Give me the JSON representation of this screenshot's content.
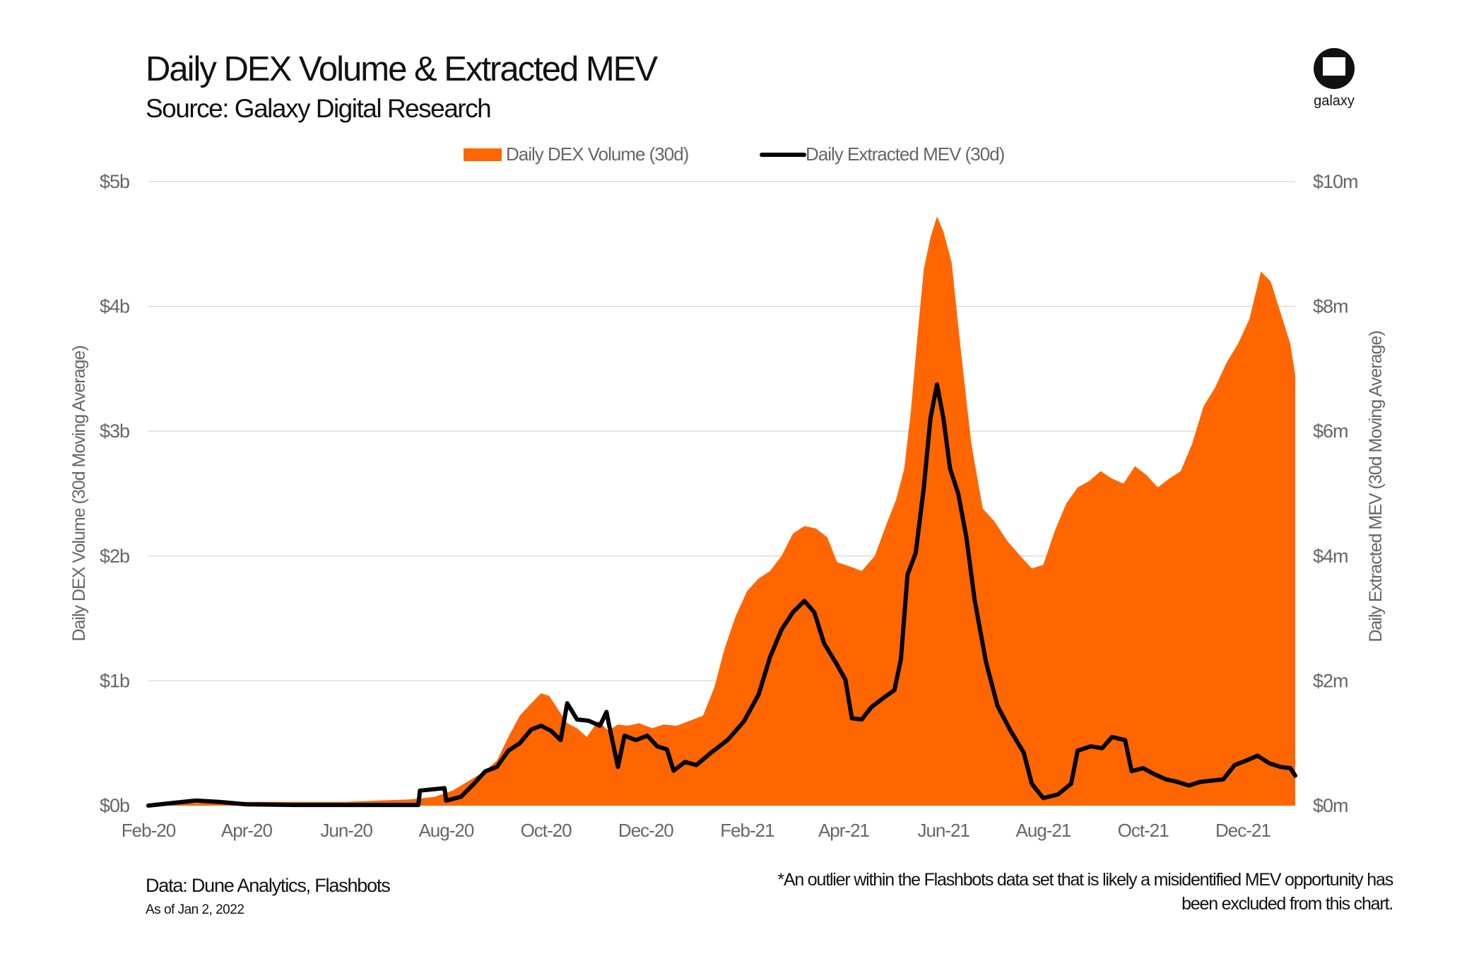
{
  "header": {
    "title": "Daily DEX Volume & Extracted MEV",
    "subtitle": "Source: Galaxy Digital Research"
  },
  "logo": {
    "icon": "galaxy-logo-icon",
    "text": "galaxy"
  },
  "footer": {
    "data_source": "Data: Dune Analytics, Flashbots",
    "as_of": "As of Jan 2, 2022",
    "note": "*An outlier within the Flashbots data set that is likely a misidentified MEV opportunity has been excluded from this chart."
  },
  "chart_data": {
    "type": "area",
    "title": "Daily DEX Volume & Extracted MEV",
    "subtitle": "Source: Galaxy Digital Research",
    "legend_position": "top-center",
    "grid": true,
    "colors": {
      "volume": "#ff6600",
      "mev": "#000000",
      "grid": "#dcdcdc",
      "axis_text": "#666666"
    },
    "x_ticks": [
      "Feb-20",
      "Apr-20",
      "Jun-20",
      "Aug-20",
      "Oct-20",
      "Dec-20",
      "Feb-21",
      "Apr-21",
      "Jun-21",
      "Aug-21",
      "Oct-21",
      "Dec-21"
    ],
    "x_tick_dates": [
      "2020-02-01",
      "2020-04-01",
      "2020-06-01",
      "2020-08-01",
      "2020-10-01",
      "2020-12-01",
      "2021-02-01",
      "2021-04-01",
      "2021-06-01",
      "2021-08-01",
      "2021-10-01",
      "2021-12-01"
    ],
    "xlim": [
      "2020-02-01",
      "2022-01-02"
    ],
    "y_left": {
      "label": "Daily DEX Volume (30d Moving Average)",
      "ticks": [
        "$0b",
        "$1b",
        "$2b",
        "$3b",
        "$4b",
        "$5b"
      ],
      "range": [
        0,
        5
      ],
      "unit": "$b"
    },
    "y_right": {
      "label": "Daily Extracted MEV (30d Moving Average)",
      "ticks": [
        "$0m",
        "$2m",
        "$4m",
        "$6m",
        "$8m",
        "$10m"
      ],
      "range": [
        0,
        10
      ],
      "unit": "$m"
    },
    "series": [
      {
        "name": "Daily DEX Volume (30d)",
        "kind": "area",
        "axis": "left",
        "points": [
          [
            "2020-02-01",
            0.01
          ],
          [
            "2020-03-01",
            0.02
          ],
          [
            "2020-04-01",
            0.03
          ],
          [
            "2020-05-01",
            0.03
          ],
          [
            "2020-06-01",
            0.03
          ],
          [
            "2020-06-20",
            0.04
          ],
          [
            "2020-07-10",
            0.05
          ],
          [
            "2020-07-25",
            0.07
          ],
          [
            "2020-08-05",
            0.12
          ],
          [
            "2020-08-15",
            0.2
          ],
          [
            "2020-08-25",
            0.28
          ],
          [
            "2020-09-01",
            0.36
          ],
          [
            "2020-09-08",
            0.55
          ],
          [
            "2020-09-15",
            0.72
          ],
          [
            "2020-09-22",
            0.82
          ],
          [
            "2020-09-28",
            0.9
          ],
          [
            "2020-10-03",
            0.88
          ],
          [
            "2020-10-08",
            0.78
          ],
          [
            "2020-10-14",
            0.66
          ],
          [
            "2020-10-20",
            0.62
          ],
          [
            "2020-10-26",
            0.55
          ],
          [
            "2020-11-02",
            0.68
          ],
          [
            "2020-11-08",
            0.6
          ],
          [
            "2020-11-14",
            0.65
          ],
          [
            "2020-11-20",
            0.64
          ],
          [
            "2020-11-27",
            0.66
          ],
          [
            "2020-12-05",
            0.62
          ],
          [
            "2020-12-12",
            0.65
          ],
          [
            "2020-12-20",
            0.64
          ],
          [
            "2020-12-28",
            0.68
          ],
          [
            "2021-01-05",
            0.72
          ],
          [
            "2021-01-12",
            0.95
          ],
          [
            "2021-01-18",
            1.25
          ],
          [
            "2021-01-25",
            1.52
          ],
          [
            "2021-02-01",
            1.72
          ],
          [
            "2021-02-08",
            1.82
          ],
          [
            "2021-02-15",
            1.88
          ],
          [
            "2021-02-22",
            2.0
          ],
          [
            "2021-03-01",
            2.18
          ],
          [
            "2021-03-08",
            2.24
          ],
          [
            "2021-03-15",
            2.22
          ],
          [
            "2021-03-22",
            2.15
          ],
          [
            "2021-03-28",
            1.95
          ],
          [
            "2021-04-04",
            1.92
          ],
          [
            "2021-04-12",
            1.88
          ],
          [
            "2021-04-20",
            2.0
          ],
          [
            "2021-04-27",
            2.25
          ],
          [
            "2021-05-03",
            2.45
          ],
          [
            "2021-05-08",
            2.7
          ],
          [
            "2021-05-12",
            3.15
          ],
          [
            "2021-05-16",
            3.75
          ],
          [
            "2021-05-20",
            4.3
          ],
          [
            "2021-05-24",
            4.55
          ],
          [
            "2021-05-28",
            4.72
          ],
          [
            "2021-06-01",
            4.6
          ],
          [
            "2021-06-06",
            4.35
          ],
          [
            "2021-06-12",
            3.6
          ],
          [
            "2021-06-18",
            2.9
          ],
          [
            "2021-06-25",
            2.38
          ],
          [
            "2021-07-02",
            2.28
          ],
          [
            "2021-07-10",
            2.12
          ],
          [
            "2021-07-18",
            2.0
          ],
          [
            "2021-07-25",
            1.9
          ],
          [
            "2021-08-01",
            1.93
          ],
          [
            "2021-08-08",
            2.2
          ],
          [
            "2021-08-15",
            2.42
          ],
          [
            "2021-08-22",
            2.55
          ],
          [
            "2021-08-29",
            2.6
          ],
          [
            "2021-09-05",
            2.68
          ],
          [
            "2021-09-12",
            2.62
          ],
          [
            "2021-09-19",
            2.58
          ],
          [
            "2021-09-26",
            2.72
          ],
          [
            "2021-10-03",
            2.65
          ],
          [
            "2021-10-10",
            2.55
          ],
          [
            "2021-10-17",
            2.62
          ],
          [
            "2021-10-24",
            2.68
          ],
          [
            "2021-10-31",
            2.9
          ],
          [
            "2021-11-07",
            3.2
          ],
          [
            "2021-11-14",
            3.35
          ],
          [
            "2021-11-21",
            3.55
          ],
          [
            "2021-11-28",
            3.7
          ],
          [
            "2021-12-05",
            3.9
          ],
          [
            "2021-12-12",
            4.28
          ],
          [
            "2021-12-18",
            4.2
          ],
          [
            "2021-12-24",
            3.95
          ],
          [
            "2021-12-30",
            3.7
          ],
          [
            "2022-01-02",
            3.45
          ]
        ]
      },
      {
        "name": "Daily Extracted MEV (30d)",
        "kind": "line",
        "axis": "right",
        "points": [
          [
            "2020-02-01",
            0.0
          ],
          [
            "2020-02-15",
            0.04
          ],
          [
            "2020-03-01",
            0.08
          ],
          [
            "2020-03-15",
            0.06
          ],
          [
            "2020-04-01",
            0.02
          ],
          [
            "2020-05-01",
            0.01
          ],
          [
            "2020-06-01",
            0.01
          ],
          [
            "2020-07-01",
            0.01
          ],
          [
            "2020-07-15",
            0.01
          ],
          [
            "2020-07-16",
            0.24
          ],
          [
            "2020-07-31",
            0.28
          ],
          [
            "2020-08-01",
            0.08
          ],
          [
            "2020-08-10",
            0.14
          ],
          [
            "2020-08-18",
            0.35
          ],
          [
            "2020-08-25",
            0.55
          ],
          [
            "2020-09-01",
            0.62
          ],
          [
            "2020-09-08",
            0.88
          ],
          [
            "2020-09-15",
            1.0
          ],
          [
            "2020-09-22",
            1.22
          ],
          [
            "2020-09-28",
            1.28
          ],
          [
            "2020-10-04",
            1.2
          ],
          [
            "2020-10-10",
            1.05
          ],
          [
            "2020-10-14",
            1.64
          ],
          [
            "2020-10-20",
            1.38
          ],
          [
            "2020-10-27",
            1.36
          ],
          [
            "2020-11-03",
            1.28
          ],
          [
            "2020-11-07",
            1.5
          ],
          [
            "2020-11-09",
            1.24
          ],
          [
            "2020-11-14",
            0.62
          ],
          [
            "2020-11-18",
            1.12
          ],
          [
            "2020-11-25",
            1.05
          ],
          [
            "2020-12-02",
            1.12
          ],
          [
            "2020-12-08",
            0.95
          ],
          [
            "2020-12-14",
            0.9
          ],
          [
            "2020-12-18",
            0.56
          ],
          [
            "2020-12-25",
            0.7
          ],
          [
            "2021-01-01",
            0.65
          ],
          [
            "2021-01-10",
            0.85
          ],
          [
            "2021-01-20",
            1.05
          ],
          [
            "2021-01-30",
            1.35
          ],
          [
            "2021-02-08",
            1.78
          ],
          [
            "2021-02-15",
            2.38
          ],
          [
            "2021-02-22",
            2.82
          ],
          [
            "2021-03-01",
            3.1
          ],
          [
            "2021-03-08",
            3.28
          ],
          [
            "2021-03-14",
            3.1
          ],
          [
            "2021-03-20",
            2.6
          ],
          [
            "2021-03-27",
            2.3
          ],
          [
            "2021-04-02",
            2.02
          ],
          [
            "2021-04-06",
            1.4
          ],
          [
            "2021-04-12",
            1.38
          ],
          [
            "2021-04-18",
            1.58
          ],
          [
            "2021-04-25",
            1.72
          ],
          [
            "2021-05-02",
            1.85
          ],
          [
            "2021-05-06",
            2.35
          ],
          [
            "2021-05-10",
            3.7
          ],
          [
            "2021-05-15",
            4.05
          ],
          [
            "2021-05-20",
            5.1
          ],
          [
            "2021-05-24",
            6.2
          ],
          [
            "2021-05-28",
            6.75
          ],
          [
            "2021-06-01",
            6.2
          ],
          [
            "2021-06-05",
            5.4
          ],
          [
            "2021-06-10",
            5.0
          ],
          [
            "2021-06-15",
            4.3
          ],
          [
            "2021-06-20",
            3.3
          ],
          [
            "2021-06-27",
            2.3
          ],
          [
            "2021-07-04",
            1.6
          ],
          [
            "2021-07-12",
            1.2
          ],
          [
            "2021-07-20",
            0.85
          ],
          [
            "2021-07-25",
            0.35
          ],
          [
            "2021-08-01",
            0.12
          ],
          [
            "2021-08-10",
            0.18
          ],
          [
            "2021-08-18",
            0.35
          ],
          [
            "2021-08-22",
            0.88
          ],
          [
            "2021-08-30",
            0.95
          ],
          [
            "2021-09-06",
            0.92
          ],
          [
            "2021-09-12",
            1.1
          ],
          [
            "2021-09-20",
            1.05
          ],
          [
            "2021-09-24",
            0.55
          ],
          [
            "2021-10-01",
            0.6
          ],
          [
            "2021-10-08",
            0.5
          ],
          [
            "2021-10-15",
            0.42
          ],
          [
            "2021-10-22",
            0.38
          ],
          [
            "2021-10-29",
            0.32
          ],
          [
            "2021-11-05",
            0.38
          ],
          [
            "2021-11-12",
            0.4
          ],
          [
            "2021-11-19",
            0.42
          ],
          [
            "2021-11-26",
            0.65
          ],
          [
            "2021-12-03",
            0.72
          ],
          [
            "2021-12-10",
            0.8
          ],
          [
            "2021-12-17",
            0.68
          ],
          [
            "2021-12-24",
            0.62
          ],
          [
            "2021-12-30",
            0.6
          ],
          [
            "2022-01-02",
            0.48
          ]
        ]
      }
    ]
  }
}
